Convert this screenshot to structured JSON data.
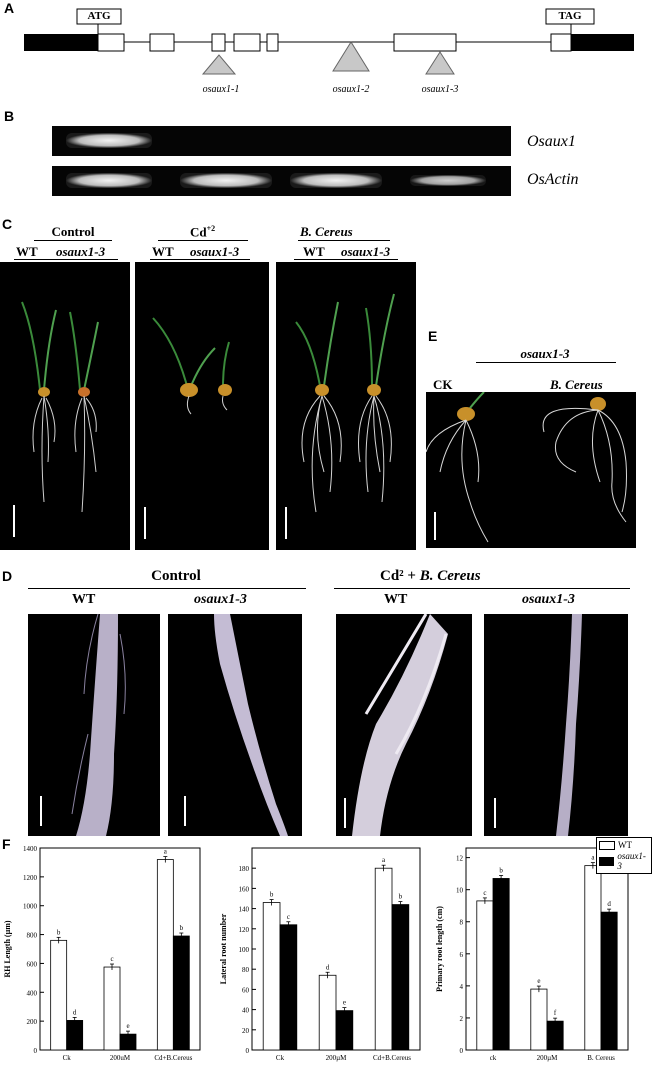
{
  "panels": {
    "a": "A",
    "b": "B",
    "c": "C",
    "d": "D",
    "e": "E",
    "f": "F"
  },
  "gene_model": {
    "start_codon": "ATG",
    "stop_codon": "TAG",
    "alleles": [
      "osaux1-1",
      "osaux1-2",
      "osaux1-3"
    ]
  },
  "gel": {
    "row1_label": "Osaux1",
    "row2_label": "OsActin"
  },
  "panel_c": {
    "groups": [
      {
        "title": "Control",
        "sub1": "WT",
        "sub2": "osaux1-3"
      },
      {
        "title": "Cd",
        "title_sup": "+2",
        "sub1": "WT",
        "sub2": "osaux1-3"
      },
      {
        "title": "B. Cereus",
        "sub1": "WT",
        "sub2": "osaux1-3"
      }
    ]
  },
  "panel_e": {
    "title": "osaux1-3",
    "left": "CK",
    "right": "B. Cereus"
  },
  "panel_d": {
    "group1": "Control",
    "group2_prefix": "Cd² + ",
    "group2_italic": "B. Cereus",
    "labels": [
      "WT",
      "osaux1-3",
      "WT",
      "osaux1-3"
    ]
  },
  "chart_data": [
    {
      "type": "bar",
      "ylabel": "RH Length (µm)",
      "categories": [
        "Ck",
        "200uM",
        "Cd+B.Cereus"
      ],
      "ylim": [
        0,
        1400
      ],
      "yticks": [
        0,
        200,
        400,
        600,
        800,
        1000,
        1200,
        1400
      ],
      "series": [
        {
          "name": "WT",
          "values": [
            760,
            575,
            1320
          ],
          "letters": [
            "b",
            "c",
            "a"
          ]
        },
        {
          "name": "osaux1-3",
          "values": [
            205,
            110,
            790
          ],
          "letters": [
            "d",
            "e",
            "b"
          ]
        }
      ]
    },
    {
      "type": "bar",
      "ylabel": "Lateral root number",
      "categories": [
        "Ck",
        "200µM",
        "Cd+B.Cereus"
      ],
      "ylim": [
        0,
        200
      ],
      "yticks": [
        0,
        20,
        40,
        60,
        80,
        100,
        120,
        140,
        160,
        180
      ],
      "series": [
        {
          "name": "WT",
          "values": [
            146,
            74,
            180
          ],
          "letters": [
            "b",
            "d",
            "a"
          ]
        },
        {
          "name": "osaux1-3",
          "values": [
            124,
            39,
            144
          ],
          "letters": [
            "c",
            "e",
            "b"
          ]
        }
      ]
    },
    {
      "type": "bar",
      "ylabel": "Primary root length (cm)",
      "categories": [
        "ck",
        "200µM",
        "B. Cereus"
      ],
      "ylim": [
        0,
        12.6
      ],
      "yticks": [
        0,
        2,
        4,
        6,
        8,
        10,
        12
      ],
      "series": [
        {
          "name": "WT",
          "values": [
            9.3,
            3.8,
            11.5
          ],
          "letters": [
            "c",
            "e",
            "a"
          ]
        },
        {
          "name": "osaux1-3",
          "values": [
            10.7,
            1.8,
            8.6
          ],
          "letters": [
            "b",
            "f",
            "d"
          ]
        }
      ]
    }
  ],
  "legend": {
    "wt": "WT",
    "mut": "osaux1-3"
  },
  "colors": {
    "wt_fill": "#ffffff",
    "mut_fill": "#000000"
  }
}
